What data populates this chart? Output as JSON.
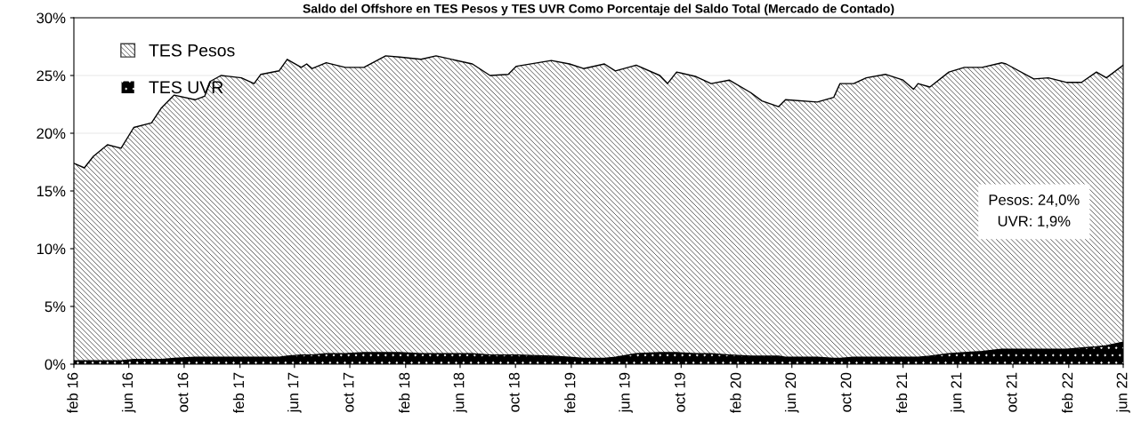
{
  "chart_data": {
    "type": "area",
    "stacked": true,
    "title": "Saldo del Offshore en TES Pesos y TES UVR Como Porcentaje del Saldo Total (Mercado de Contado)",
    "x": [
      "2016-02-01",
      "2016-02-24",
      "2016-03-15",
      "2016-04-15",
      "2016-05-15",
      "2016-06-12",
      "2016-07-21",
      "2016-08-12",
      "2016-09-09",
      "2016-10-25",
      "2016-11-15",
      "2016-11-28",
      "2016-12-21",
      "2017-02-04",
      "2017-03-04",
      "2017-03-19",
      "2017-04-28",
      "2017-05-16",
      "2017-06-16",
      "2017-06-28",
      "2017-07-10",
      "2017-08-10",
      "2017-09-21",
      "2017-11-01",
      "2017-12-19",
      "2018-01-19",
      "2018-03-07",
      "2018-04-09",
      "2018-06-28",
      "2018-08-06",
      "2018-09-15",
      "2018-10-03",
      "2018-12-19",
      "2019-01-28",
      "2019-02-28",
      "2019-04-15",
      "2019-05-09",
      "2019-06-24",
      "2019-08-15",
      "2019-09-01",
      "2019-09-21",
      "2019-11-03",
      "2019-12-06",
      "2020-01-15",
      "2020-03-03",
      "2020-03-27",
      "2020-05-03",
      "2020-05-18",
      "2020-07-27",
      "2020-09-01",
      "2020-09-15",
      "2020-10-15",
      "2020-11-12",
      "2020-12-24",
      "2021-02-01",
      "2021-02-24",
      "2021-03-06",
      "2021-04-01",
      "2021-05-13",
      "2021-06-16",
      "2021-07-25",
      "2021-09-06",
      "2021-09-16",
      "2021-11-16",
      "2021-12-18",
      "2022-01-28",
      "2022-03-01",
      "2022-04-03",
      "2022-04-25",
      "2022-06-01"
    ],
    "series": [
      {
        "name": "TES UVR",
        "color": "#000000",
        "values": [
          0.3,
          0.3,
          0.3,
          0.3,
          0.3,
          0.4,
          0.4,
          0.4,
          0.5,
          0.6,
          0.6,
          0.6,
          0.6,
          0.6,
          0.6,
          0.6,
          0.6,
          0.7,
          0.8,
          0.8,
          0.8,
          0.9,
          0.9,
          1.0,
          1.0,
          1.0,
          0.9,
          0.9,
          0.9,
          0.8,
          0.8,
          0.8,
          0.7,
          0.6,
          0.5,
          0.5,
          0.6,
          0.9,
          1.0,
          1.0,
          1.0,
          0.9,
          0.9,
          0.8,
          0.7,
          0.7,
          0.7,
          0.6,
          0.6,
          0.5,
          0.5,
          0.6,
          0.6,
          0.6,
          0.6,
          0.6,
          0.6,
          0.7,
          0.9,
          1.0,
          1.1,
          1.3,
          1.3,
          1.3,
          1.3,
          1.3,
          1.4,
          1.5,
          1.6,
          1.9
        ]
      },
      {
        "name": "TES Pesos",
        "color": "#404040",
        "values": [
          17.1,
          16.7,
          17.7,
          18.7,
          18.4,
          20.1,
          20.5,
          21.8,
          22.8,
          22.3,
          22.6,
          23.9,
          24.4,
          24.2,
          23.7,
          24.5,
          24.8,
          25.7,
          24.9,
          25.2,
          24.8,
          25.2,
          24.8,
          24.7,
          25.7,
          25.6,
          25.5,
          25.8,
          25.1,
          24.2,
          24.3,
          25.0,
          25.6,
          25.4,
          25.1,
          25.5,
          24.8,
          25.0,
          24.0,
          23.3,
          24.3,
          24.0,
          23.4,
          23.8,
          22.8,
          22.1,
          21.6,
          22.3,
          22.1,
          22.6,
          23.8,
          23.7,
          24.2,
          24.5,
          24.0,
          23.2,
          23.7,
          23.3,
          24.4,
          24.7,
          24.6,
          24.8,
          24.7,
          23.4,
          23.5,
          23.1,
          23.0,
          23.8,
          23.2,
          24.0
        ]
      }
    ],
    "xlim": [
      "2016-02-01",
      "2022-06-01"
    ],
    "xticks": [
      {
        "value": "2016-02-01",
        "label": "feb 16"
      },
      {
        "value": "2016-06-01",
        "label": "jun 16"
      },
      {
        "value": "2016-10-01",
        "label": "oct 16"
      },
      {
        "value": "2017-02-01",
        "label": "feb 17"
      },
      {
        "value": "2017-06-01",
        "label": "jun 17"
      },
      {
        "value": "2017-10-01",
        "label": "oct 17"
      },
      {
        "value": "2018-02-01",
        "label": "feb 18"
      },
      {
        "value": "2018-06-01",
        "label": "jun 18"
      },
      {
        "value": "2018-10-01",
        "label": "oct 18"
      },
      {
        "value": "2019-02-01",
        "label": "feb 19"
      },
      {
        "value": "2019-06-01",
        "label": "jun 19"
      },
      {
        "value": "2019-10-01",
        "label": "oct 19"
      },
      {
        "value": "2020-02-01",
        "label": "feb 20"
      },
      {
        "value": "2020-06-01",
        "label": "jun 20"
      },
      {
        "value": "2020-10-01",
        "label": "oct 20"
      },
      {
        "value": "2021-02-01",
        "label": "feb 21"
      },
      {
        "value": "2021-06-01",
        "label": "jun 21"
      },
      {
        "value": "2021-10-01",
        "label": "oct 21"
      },
      {
        "value": "2022-02-01",
        "label": "feb 22"
      },
      {
        "value": "2022-06-01",
        "label": "jun 22"
      }
    ],
    "ylim": [
      0,
      30
    ],
    "yticks": [
      {
        "value": 0,
        "label": "0%"
      },
      {
        "value": 5,
        "label": "5%"
      },
      {
        "value": 10,
        "label": "10%"
      },
      {
        "value": 15,
        "label": "15%"
      },
      {
        "value": 20,
        "label": "20%"
      },
      {
        "value": 25,
        "label": "25%"
      },
      {
        "value": 30,
        "label": "30%"
      }
    ],
    "grid": "y",
    "legend": "top left",
    "annotations": [
      "Pesos: 24,0%",
      "UVR: 1,9%"
    ]
  }
}
